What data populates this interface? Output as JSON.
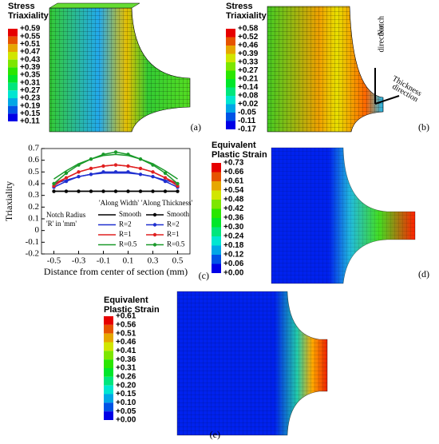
{
  "panels": [
    {
      "title": [
        "Stress",
        "Triaxiality"
      ],
      "tag": "(a)",
      "labels": [
        "+0.59",
        "+0.55",
        "+0.51",
        "+0.47",
        "+0.43",
        "+0.39",
        "+0.35",
        "+0.31",
        "+0.27",
        "+0.23",
        "+0.19",
        "+0.15",
        "+0.11"
      ]
    },
    {
      "title": [
        "Stress",
        "Triaxiality"
      ],
      "tag": "(b)",
      "labels": [
        "+0.58",
        "+0.52",
        "+0.46",
        "+0.39",
        "+0.33",
        "+0.27",
        "+0.21",
        "+0.14",
        "+0.08",
        "+0.02",
        "-0.05",
        "-0.11",
        "-0.17"
      ],
      "annotations": [
        "Notch",
        "direction",
        "Thickness",
        "direction"
      ]
    },
    {
      "title": [
        "Equivalent",
        "Plastic Strain"
      ],
      "tag": "(d)",
      "labels": [
        "+0.73",
        "+0.66",
        "+0.61",
        "+0.54",
        "+0.48",
        "+0.42",
        "+0.36",
        "+0.30",
        "+0.24",
        "+0.18",
        "+0.12",
        "+0.06",
        "+0.00"
      ]
    },
    {
      "title": [
        "Equivalent",
        "Plastic Strain"
      ],
      "tag": "(e)",
      "labels": [
        "+0.61",
        "+0.56",
        "+0.51",
        "+0.46",
        "+0.41",
        "+0.36",
        "+0.31",
        "+0.26",
        "+0.20",
        "+0.15",
        "+0.10",
        "+0.05",
        "+0.00"
      ]
    }
  ],
  "chart_data": {
    "type": "line",
    "tag": "(c)",
    "x_label": "Distance from center of section (mm)",
    "y_label": "Triaxiality",
    "x": [
      -0.5,
      -0.4,
      -0.3,
      -0.2,
      -0.1,
      0,
      0.1,
      0.2,
      0.3,
      0.4,
      0.5
    ],
    "xlim": [
      -0.6,
      0.6
    ],
    "xticks": [
      -0.5,
      -0.3,
      -0.1,
      0.1,
      0.3,
      0.5
    ],
    "ylim": [
      -0.2,
      0.7
    ],
    "yticks": [
      -0.2,
      -0.1,
      0,
      0.1,
      0.2,
      0.3,
      0.4,
      0.5,
      0.6,
      0.7
    ],
    "legend_groups": [
      "'Along Width'",
      "'Along Thickness'"
    ],
    "annotation": [
      "Notch Radius",
      "'R' in 'mm'"
    ],
    "series": [
      {
        "name": "Smooth",
        "color": "#000000",
        "markers": false,
        "values": [
          0.335,
          0.335,
          0.335,
          0.335,
          0.335,
          0.335,
          0.335,
          0.335,
          0.335,
          0.335,
          0.335
        ]
      },
      {
        "name": "R=2",
        "color": "#1f2fd0",
        "markers": false,
        "values": [
          0.4,
          0.43,
          0.46,
          0.48,
          0.49,
          0.49,
          0.49,
          0.48,
          0.46,
          0.43,
          0.4
        ]
      },
      {
        "name": "R=1",
        "color": "#e02020",
        "markers": false,
        "values": [
          0.4,
          0.45,
          0.5,
          0.53,
          0.55,
          0.56,
          0.55,
          0.53,
          0.5,
          0.45,
          0.4
        ]
      },
      {
        "name": "R=0.5",
        "color": "#1a9a2a",
        "markers": false,
        "values": [
          0.44,
          0.51,
          0.57,
          0.61,
          0.64,
          0.65,
          0.64,
          0.61,
          0.57,
          0.51,
          0.44
        ]
      },
      {
        "name": "Smooth",
        "color": "#000000",
        "markers": true,
        "values": [
          0.335,
          0.335,
          0.335,
          0.335,
          0.335,
          0.335,
          0.335,
          0.335,
          0.335,
          0.335,
          0.335
        ]
      },
      {
        "name": "R=2",
        "color": "#1f2fd0",
        "markers": true,
        "values": [
          0.37,
          0.42,
          0.46,
          0.48,
          0.5,
          0.5,
          0.5,
          0.48,
          0.46,
          0.42,
          0.37
        ]
      },
      {
        "name": "R=1",
        "color": "#e02020",
        "markers": true,
        "values": [
          0.38,
          0.45,
          0.5,
          0.53,
          0.55,
          0.56,
          0.55,
          0.53,
          0.5,
          0.45,
          0.38
        ]
      },
      {
        "name": "R=0.5",
        "color": "#1a9a2a",
        "markers": true,
        "values": [
          0.4,
          0.49,
          0.56,
          0.61,
          0.65,
          0.67,
          0.65,
          0.61,
          0.56,
          0.49,
          0.4
        ]
      }
    ]
  }
}
